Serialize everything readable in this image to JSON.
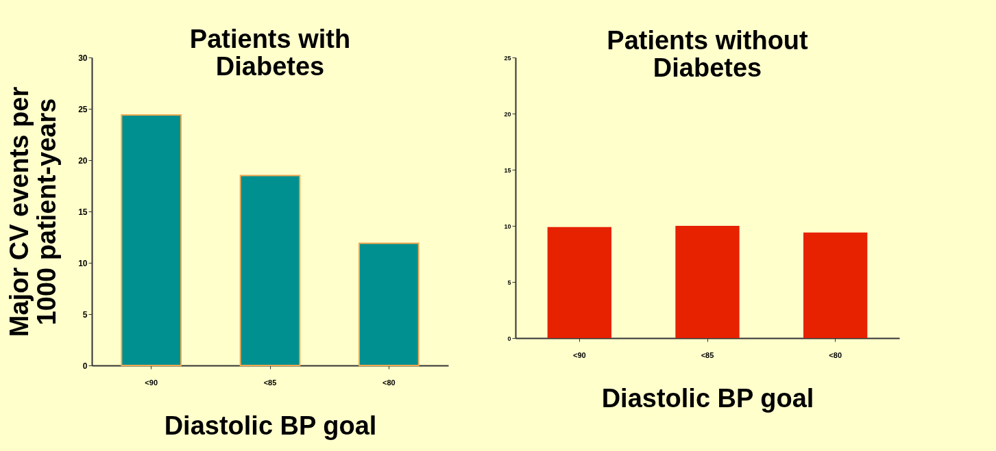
{
  "chart_data": [
    {
      "type": "bar",
      "title": "Patients with\nDiabetes",
      "xlabel": "Diastolic BP goal",
      "ylabel": "Major CV events per\n1000 patient-years",
      "categories": [
        "<90",
        "<85",
        "<80"
      ],
      "values": [
        24.4,
        18.5,
        11.9
      ],
      "color": "#009090",
      "ylim": [
        0,
        30
      ],
      "yticks": [
        0,
        5,
        10,
        15,
        20,
        25,
        30
      ],
      "grid": false,
      "legend": false
    },
    {
      "type": "bar",
      "title": "Patients without\nDiabetes",
      "xlabel": "Diastolic BP goal",
      "categories": [
        "<90",
        "<85",
        "<80"
      ],
      "values": [
        9.9,
        10.0,
        9.4
      ],
      "color": "#e62200",
      "ylim": [
        0,
        25
      ],
      "yticks": [
        0,
        5,
        10,
        15,
        20,
        25
      ],
      "grid": false,
      "legend": false
    }
  ]
}
